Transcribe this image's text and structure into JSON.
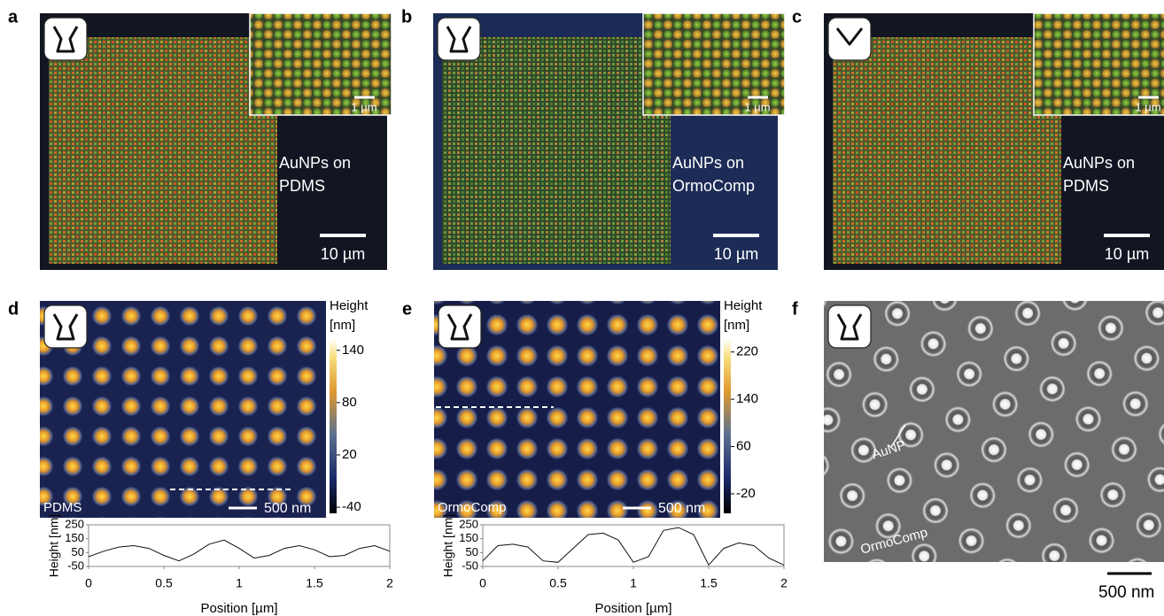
{
  "fluorescence": [
    {
      "label": "a",
      "inset_scale": "1 µm",
      "caption": [
        "AuNPs on",
        "PDMS"
      ],
      "scale_bar": "10 µm"
    },
    {
      "label": "b",
      "inset_scale": "1 µm",
      "caption": [
        "AuNPs on",
        "OrmoComp"
      ],
      "scale_bar": "10 µm"
    },
    {
      "label": "c",
      "inset_scale": "1 µm",
      "caption": [
        "AuNPs on",
        "PDMS"
      ],
      "scale_bar": "10 µm"
    }
  ],
  "afm": [
    {
      "label": "d",
      "sample": "PDMS",
      "scale_bar": "500 nm",
      "colorbar_title": [
        "Height",
        "[nm]"
      ],
      "colorbar_lim": [
        -47,
        153
      ],
      "colorbar_ticks": [
        140,
        80,
        20,
        -40
      ],
      "profile": {
        "type": "line",
        "x_label": "Position [µm]",
        "y_label": "Height [nm]",
        "x": [
          0,
          0.1,
          0.2,
          0.3,
          0.4,
          0.5,
          0.6,
          0.7,
          0.8,
          0.9,
          1,
          1.1,
          1.2,
          1.3,
          1.4,
          1.5,
          1.6,
          1.7,
          1.8,
          1.9,
          2
        ],
        "values": [
          20,
          60,
          90,
          100,
          80,
          30,
          -10,
          40,
          110,
          140,
          80,
          10,
          30,
          80,
          100,
          70,
          20,
          30,
          80,
          100,
          60
        ],
        "xlim": [
          0,
          2
        ],
        "ylim": [
          -50,
          250
        ],
        "xticks": [
          0,
          0.5,
          1,
          1.5,
          2
        ],
        "yticks": [
          -50,
          50,
          150,
          250
        ]
      }
    },
    {
      "label": "e",
      "sample": "OrmoComp",
      "scale_bar": "500 nm",
      "colorbar_title": [
        "Height",
        "[nm]"
      ],
      "colorbar_lim": [
        -53,
        242
      ],
      "colorbar_ticks": [
        220,
        140,
        60,
        -20
      ],
      "profile": {
        "type": "line",
        "x_label": "Position [µm]",
        "y_label": "Height [nm]",
        "x": [
          0,
          0.1,
          0.2,
          0.3,
          0.4,
          0.5,
          0.6,
          0.7,
          0.8,
          0.9,
          1,
          1.1,
          1.2,
          1.3,
          1.4,
          1.5,
          1.6,
          1.7,
          1.8,
          1.9,
          2
        ],
        "values": [
          -10,
          100,
          110,
          90,
          -10,
          -20,
          80,
          180,
          190,
          140,
          -20,
          20,
          210,
          230,
          180,
          -40,
          80,
          120,
          100,
          10,
          -40
        ],
        "xlim": [
          0,
          2
        ],
        "ylim": [
          -50,
          250
        ],
        "xticks": [
          0,
          0.5,
          1,
          1.5,
          2
        ],
        "yticks": [
          -50,
          50,
          150,
          250
        ]
      }
    }
  ],
  "sem": {
    "label": "f",
    "annotations": [
      "AuNP",
      "OrmoComp"
    ],
    "scale_bar": "500 nm"
  }
}
